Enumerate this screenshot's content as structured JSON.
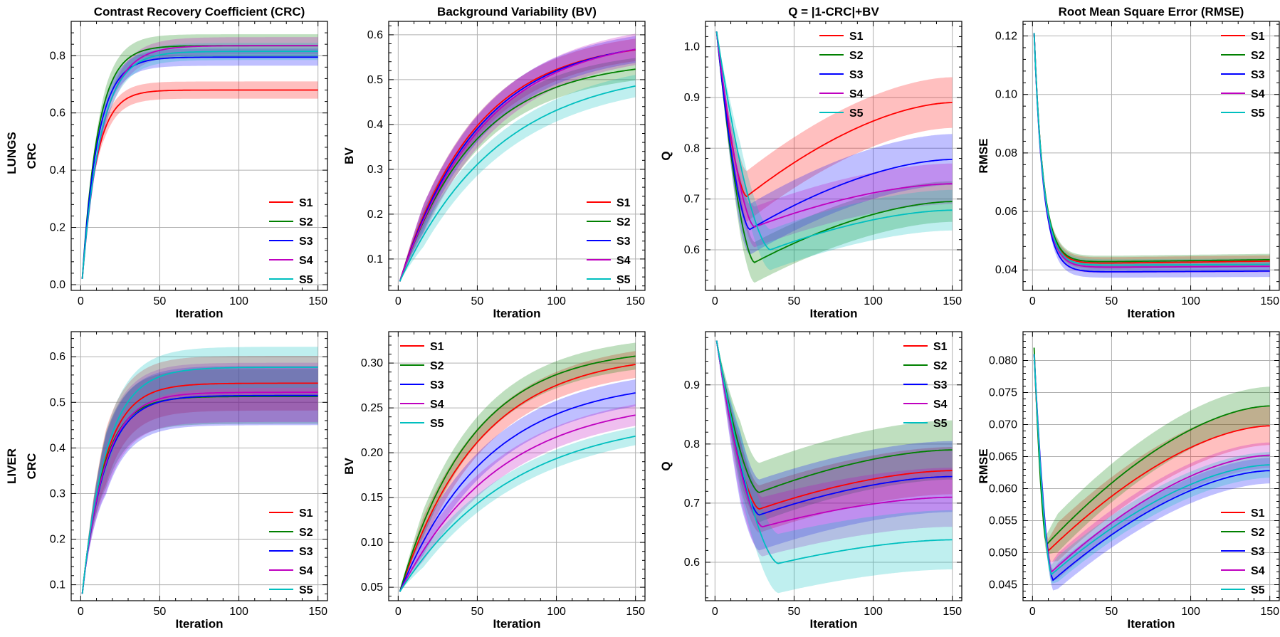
{
  "figure": {
    "row_labels": [
      "LUNGS",
      "LIVER"
    ],
    "series_names": [
      "S1",
      "S2",
      "S3",
      "S4",
      "S5"
    ],
    "colors": {
      "S1": "#ff0000",
      "S2": "#008000",
      "S3": "#0000ff",
      "S4": "#bf00bf",
      "S5": "#00bfbf"
    }
  },
  "chart_data": [
    {
      "id": "lungs-crc",
      "type": "line",
      "title": "Contrast Recovery Coefficient (CRC)",
      "xlabel": "Iteration",
      "ylabel": "CRC",
      "xlim": [
        -6,
        156
      ],
      "ylim": [
        -0.02,
        0.92
      ],
      "xticks": [
        0,
        50,
        100,
        150
      ],
      "yticks": [
        0.0,
        0.2,
        0.4,
        0.6,
        0.8
      ],
      "ydecimals": 1,
      "grid": true,
      "legend": "lower-right",
      "series": [
        {
          "name": "S1",
          "shape": "sat",
          "start": 0.02,
          "end": 0.68,
          "k": 0.11,
          "band": 0.03
        },
        {
          "name": "S2",
          "shape": "sat",
          "start": 0.02,
          "end": 0.835,
          "k": 0.1,
          "band": 0.04
        },
        {
          "name": "S3",
          "shape": "sat",
          "start": 0.02,
          "end": 0.795,
          "k": 0.1,
          "band": 0.03
        },
        {
          "name": "S4",
          "shape": "sat",
          "start": 0.02,
          "end": 0.835,
          "k": 0.08,
          "band": 0.03
        },
        {
          "name": "S5",
          "shape": "sat",
          "start": 0.02,
          "end": 0.815,
          "k": 0.085,
          "band": 0.03
        }
      ]
    },
    {
      "id": "lungs-bv",
      "type": "line",
      "title": "Background Variability (BV)",
      "xlabel": "Iteration",
      "ylabel": "BV",
      "xlim": [
        -6,
        156
      ],
      "ylim": [
        0.03,
        0.63
      ],
      "xticks": [
        0,
        50,
        100,
        150
      ],
      "yticks": [
        0.1,
        0.2,
        0.3,
        0.4,
        0.5,
        0.6
      ],
      "ydecimals": 1,
      "grid": true,
      "legend": "lower-right",
      "series": [
        {
          "name": "S1",
          "shape": "sat",
          "start": 0.05,
          "end": 0.59,
          "k": 0.021,
          "band": 0.025
        },
        {
          "name": "S2",
          "shape": "sat",
          "start": 0.05,
          "end": 0.545,
          "k": 0.021,
          "band": 0.025
        },
        {
          "name": "S3",
          "shape": "sat",
          "start": 0.05,
          "end": 0.595,
          "k": 0.02,
          "band": 0.03
        },
        {
          "name": "S4",
          "shape": "sat",
          "start": 0.05,
          "end": 0.6,
          "k": 0.019,
          "band": 0.035
        },
        {
          "name": "S5",
          "shape": "sat",
          "start": 0.05,
          "end": 0.53,
          "k": 0.016,
          "band": 0.025
        }
      ]
    },
    {
      "id": "lungs-q",
      "type": "line",
      "title": "Q = |1-CRC|+BV",
      "xlabel": "Iteration",
      "ylabel": "Q",
      "xlim": [
        -6,
        156
      ],
      "ylim": [
        0.52,
        1.05
      ],
      "xticks": [
        0,
        50,
        100,
        150
      ],
      "yticks": [
        0.6,
        0.7,
        0.8,
        0.9,
        1.0
      ],
      "ydecimals": 1,
      "grid": true,
      "legend": "upper-center",
      "series": [
        {
          "name": "S1",
          "shape": "dip",
          "start": 1.03,
          "min": 0.705,
          "tmin": 20,
          "end": 0.89,
          "band": 0.05
        },
        {
          "name": "S2",
          "shape": "dip",
          "start": 1.03,
          "min": 0.575,
          "tmin": 25,
          "end": 0.695,
          "band": 0.04
        },
        {
          "name": "S3",
          "shape": "dip",
          "start": 1.03,
          "min": 0.64,
          "tmin": 22,
          "end": 0.778,
          "band": 0.05
        },
        {
          "name": "S4",
          "shape": "dip",
          "start": 1.03,
          "min": 0.645,
          "tmin": 25,
          "end": 0.73,
          "band": 0.04
        },
        {
          "name": "S5",
          "shape": "dip",
          "start": 1.03,
          "min": 0.6,
          "tmin": 35,
          "end": 0.678,
          "band": 0.04
        }
      ]
    },
    {
      "id": "lungs-rmse",
      "type": "line",
      "title": "Root Mean Square Error (RMSE)",
      "xlabel": "Iteration",
      "ylabel": "RMSE",
      "xlim": [
        -6,
        156
      ],
      "ylim": [
        0.033,
        0.125
      ],
      "xticks": [
        0,
        50,
        100,
        150
      ],
      "yticks": [
        0.04,
        0.06,
        0.08,
        0.1,
        0.12
      ],
      "ydecimals": 2,
      "grid": true,
      "legend": "upper-right",
      "series": [
        {
          "name": "S1",
          "shape": "decay",
          "start": 0.121,
          "base": 0.042,
          "k": 0.17,
          "slope": 6.7e-06,
          "band": 0.002
        },
        {
          "name": "S2",
          "shape": "decay",
          "start": 0.121,
          "base": 0.0425,
          "k": 0.17,
          "slope": 6.7e-06,
          "band": 0.002
        },
        {
          "name": "S3",
          "shape": "decay",
          "start": 0.121,
          "base": 0.0392,
          "k": 0.17,
          "slope": 2.7e-06,
          "band": 0.002
        },
        {
          "name": "S4",
          "shape": "decay",
          "start": 0.121,
          "base": 0.0408,
          "k": 0.17,
          "slope": 2.7e-06,
          "band": 0.002
        },
        {
          "name": "S5",
          "shape": "decay",
          "start": 0.121,
          "base": 0.0415,
          "k": 0.17,
          "slope": 2.7e-06,
          "band": 0.002
        }
      ]
    },
    {
      "id": "liver-crc",
      "type": "line",
      "title": "",
      "xlabel": "Iteration",
      "ylabel": "CRC",
      "xlim": [
        -6,
        156
      ],
      "ylim": [
        0.065,
        0.655
      ],
      "xticks": [
        0,
        50,
        100,
        150
      ],
      "yticks": [
        0.1,
        0.2,
        0.3,
        0.4,
        0.5,
        0.6
      ],
      "ydecimals": 1,
      "grid": true,
      "legend": "lower-right",
      "series": [
        {
          "name": "S1",
          "shape": "sat",
          "start": 0.08,
          "end": 0.542,
          "k": 0.07,
          "band": 0.06
        },
        {
          "name": "S2",
          "shape": "sat",
          "start": 0.08,
          "end": 0.513,
          "k": 0.075,
          "band": 0.06
        },
        {
          "name": "S3",
          "shape": "sat",
          "start": 0.08,
          "end": 0.515,
          "k": 0.07,
          "band": 0.065
        },
        {
          "name": "S4",
          "shape": "sat",
          "start": 0.08,
          "end": 0.522,
          "k": 0.07,
          "band": 0.065
        },
        {
          "name": "S5",
          "shape": "sat",
          "start": 0.08,
          "end": 0.577,
          "k": 0.065,
          "band": 0.045
        }
      ]
    },
    {
      "id": "liver-bv",
      "type": "line",
      "title": "",
      "xlabel": "Iteration",
      "ylabel": "BV",
      "xlim": [
        -6,
        156
      ],
      "ylim": [
        0.035,
        0.335
      ],
      "xticks": [
        0,
        50,
        100,
        150
      ],
      "yticks": [
        0.05,
        0.1,
        0.15,
        0.2,
        0.25,
        0.3
      ],
      "ydecimals": 2,
      "grid": true,
      "legend": "upper-left",
      "series": [
        {
          "name": "S1",
          "shape": "sat",
          "start": 0.045,
          "end": 0.312,
          "k": 0.02,
          "band": 0.015
        },
        {
          "name": "S2",
          "shape": "sat",
          "start": 0.045,
          "end": 0.318,
          "k": 0.022,
          "band": 0.015
        },
        {
          "name": "S3",
          "shape": "sat",
          "start": 0.045,
          "end": 0.283,
          "k": 0.018,
          "band": 0.015
        },
        {
          "name": "S4",
          "shape": "sat",
          "start": 0.045,
          "end": 0.262,
          "k": 0.016,
          "band": 0.012
        },
        {
          "name": "S5",
          "shape": "sat",
          "start": 0.045,
          "end": 0.243,
          "k": 0.014,
          "band": 0.01
        }
      ]
    },
    {
      "id": "liver-q",
      "type": "line",
      "title": "",
      "xlabel": "Iteration",
      "ylabel": "Q",
      "xlim": [
        -6,
        156
      ],
      "ylim": [
        0.535,
        0.99
      ],
      "xticks": [
        0,
        50,
        100,
        150
      ],
      "yticks": [
        0.6,
        0.7,
        0.8,
        0.9
      ],
      "ydecimals": 1,
      "grid": true,
      "legend": "upper-right",
      "series": [
        {
          "name": "S1",
          "shape": "dip",
          "start": 0.975,
          "min": 0.69,
          "tmin": 28,
          "end": 0.755,
          "band": 0.04
        },
        {
          "name": "S2",
          "shape": "dip",
          "start": 0.975,
          "min": 0.718,
          "tmin": 28,
          "end": 0.79,
          "band": 0.05
        },
        {
          "name": "S3",
          "shape": "dip",
          "start": 0.975,
          "min": 0.68,
          "tmin": 28,
          "end": 0.745,
          "band": 0.06
        },
        {
          "name": "S4",
          "shape": "dip",
          "start": 0.975,
          "min": 0.66,
          "tmin": 30,
          "end": 0.71,
          "band": 0.05
        },
        {
          "name": "S5",
          "shape": "dip",
          "start": 0.975,
          "min": 0.598,
          "tmin": 40,
          "end": 0.638,
          "band": 0.05
        }
      ]
    },
    {
      "id": "liver-rmse",
      "type": "line",
      "title": "",
      "xlabel": "Iteration",
      "ylabel": "RMSE",
      "xlim": [
        -6,
        156
      ],
      "ylim": [
        0.0425,
        0.0845
      ],
      "xticks": [
        0,
        50,
        100,
        150
      ],
      "yticks": [
        0.045,
        0.05,
        0.055,
        0.06,
        0.065,
        0.07,
        0.075,
        0.08
      ],
      "ydecimals": 3,
      "grid": true,
      "legend": "lower-right",
      "series": [
        {
          "name": "S1",
          "shape": "dip",
          "start": 0.081,
          "min": 0.0503,
          "tmin": 10,
          "end": 0.0698,
          "band": 0.003
        },
        {
          "name": "S2",
          "shape": "dip",
          "start": 0.082,
          "min": 0.0513,
          "tmin": 9,
          "end": 0.0729,
          "band": 0.003
        },
        {
          "name": "S3",
          "shape": "dip",
          "start": 0.081,
          "min": 0.0457,
          "tmin": 13,
          "end": 0.0628,
          "band": 0.002
        },
        {
          "name": "S4",
          "shape": "dip",
          "start": 0.081,
          "min": 0.047,
          "tmin": 12,
          "end": 0.0652,
          "band": 0.002
        },
        {
          "name": "S5",
          "shape": "dip",
          "start": 0.081,
          "min": 0.0466,
          "tmin": 12,
          "end": 0.0637,
          "band": 0.002
        }
      ]
    }
  ]
}
